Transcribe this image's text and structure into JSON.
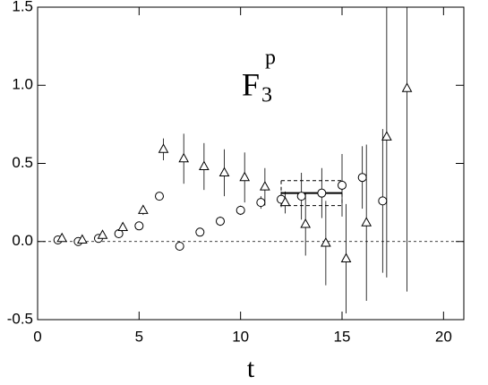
{
  "chart_data": {
    "type": "scatter",
    "annotation": {
      "main": "F",
      "subscript": "3",
      "superscript": "p"
    },
    "x_label": "t",
    "xlim": [
      0,
      21
    ],
    "ylim": [
      -0.5,
      1.5
    ],
    "xticks": [
      0,
      5,
      10,
      15,
      20
    ],
    "yticks": [
      -0.5,
      {
        "value": 0,
        "label": "0.0"
      },
      0.5,
      {
        "value": 1,
        "label": "1.0"
      },
      1.5
    ],
    "zero_line": 0,
    "series": [
      {
        "marker": "circle",
        "color": "#000000",
        "x": [
          1,
          2,
          3,
          4,
          5,
          6,
          7,
          8,
          9,
          10,
          11,
          12,
          13,
          14,
          15,
          16,
          17
        ],
        "values": [
          0.01,
          0.0,
          0.02,
          0.05,
          0.1,
          0.29,
          -0.03,
          0.06,
          0.13,
          0.2,
          0.25,
          0.27,
          0.29,
          0.31,
          0.36,
          0.41,
          0.26
        ],
        "errors": [
          0.01,
          0.01,
          0.01,
          0.01,
          0.01,
          0.02,
          0.02,
          0.02,
          0.03,
          0.03,
          0.04,
          0.05,
          0.15,
          0.16,
          0.2,
          0.2,
          0.46
        ]
      },
      {
        "marker": "triangle",
        "color": "#000000",
        "x": [
          1.2,
          2.2,
          3.2,
          4.2,
          5.2,
          6.2,
          7.2,
          8.2,
          9.2,
          10.2,
          11.2,
          12.2,
          13.2,
          14.2,
          15.2,
          16.2,
          17.2,
          18.2
        ],
        "values": [
          0.02,
          0.01,
          0.04,
          0.09,
          0.2,
          0.59,
          0.53,
          0.48,
          0.44,
          0.41,
          0.35,
          0.25,
          0.11,
          -0.01,
          -0.11,
          0.12,
          0.67,
          0.98
        ],
        "errors": [
          0.01,
          0.01,
          0.01,
          0.02,
          0.03,
          0.07,
          0.16,
          0.15,
          0.15,
          0.16,
          0.12,
          0.07,
          0.2,
          0.27,
          0.35,
          0.5,
          0.9,
          1.3
        ]
      }
    ],
    "fit": {
      "x": [
        12,
        15
      ],
      "value": 0.31,
      "upper": 0.39,
      "lower": 0.23
    }
  }
}
